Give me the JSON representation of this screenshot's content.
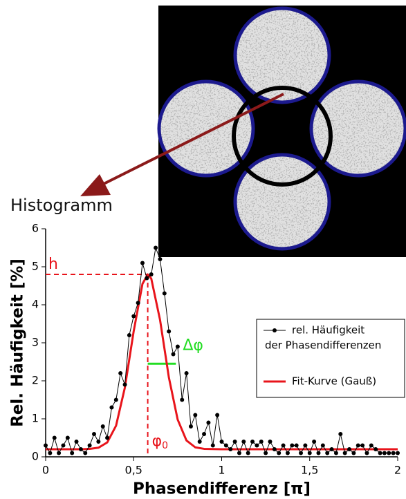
{
  "chart_data": {
    "type": "line",
    "inset_label": "Histogramm",
    "xlabel": "Phasendifferenz [π]",
    "ylabel": "Rel. Häufigkeit [%]",
    "xlim": [
      0,
      2
    ],
    "ylim": [
      0,
      6
    ],
    "xticks": [
      0,
      {
        "value": 0.5,
        "label": "0,5"
      },
      1,
      {
        "value": 1.5,
        "label": "1,5"
      },
      2
    ],
    "yticks": [
      0,
      1,
      2,
      3,
      4,
      5,
      6
    ],
    "series": [
      {
        "name": [
          "rel. Häufigkeit",
          "der Phasendifferenzen"
        ],
        "color": "#000000",
        "markers": true,
        "x": [
          0,
          0.025,
          0.05,
          0.075,
          0.1,
          0.125,
          0.15,
          0.175,
          0.2,
          0.225,
          0.25,
          0.275,
          0.3,
          0.325,
          0.35,
          0.375,
          0.4,
          0.425,
          0.45,
          0.475,
          0.5,
          0.525,
          0.55,
          0.575,
          0.6,
          0.625,
          0.65,
          0.675,
          0.7,
          0.725,
          0.75,
          0.775,
          0.8,
          0.825,
          0.85,
          0.875,
          0.9,
          0.925,
          0.95,
          0.975,
          1,
          1.025,
          1.05,
          1.075,
          1.1,
          1.125,
          1.15,
          1.175,
          1.2,
          1.225,
          1.25,
          1.275,
          1.3,
          1.325,
          1.35,
          1.375,
          1.4,
          1.425,
          1.45,
          1.475,
          1.5,
          1.525,
          1.55,
          1.575,
          1.6,
          1.625,
          1.65,
          1.675,
          1.7,
          1.725,
          1.75,
          1.775,
          1.8,
          1.825,
          1.85,
          1.875,
          1.9,
          1.925,
          1.95,
          1.975,
          2
        ],
        "values": [
          0.3,
          0.1,
          0.5,
          0.1,
          0.3,
          0.5,
          0.1,
          0.4,
          0.2,
          0.1,
          0.3,
          0.6,
          0.4,
          0.8,
          0.5,
          1.3,
          1.5,
          2.2,
          1.9,
          3.2,
          3.7,
          4.05,
          5.1,
          4.7,
          4.8,
          5.5,
          5.2,
          4.3,
          3.3,
          2.7,
          2.9,
          1.5,
          2.2,
          0.8,
          1.1,
          0.4,
          0.6,
          0.9,
          0.3,
          1.1,
          0.4,
          0.3,
          0.2,
          0.4,
          0.1,
          0.4,
          0.1,
          0.4,
          0.3,
          0.4,
          0.1,
          0.4,
          0.2,
          0.1,
          0.3,
          0.1,
          0.3,
          0.3,
          0.1,
          0.3,
          0.1,
          0.4,
          0.1,
          0.3,
          0.1,
          0.2,
          0.1,
          0.6,
          0.1,
          0.2,
          0.1,
          0.3,
          0.3,
          0.1,
          0.3,
          0.2,
          0.1,
          0.1,
          0.1,
          0.1,
          0.1
        ]
      },
      {
        "name": [
          "Fit-Kurve (Gauß)"
        ],
        "color": "#e8141b",
        "markers": false,
        "x": [
          0,
          0.1,
          0.2,
          0.25,
          0.3,
          0.35,
          0.4,
          0.45,
          0.5,
          0.55,
          0.58,
          0.6,
          0.65,
          0.7,
          0.75,
          0.8,
          0.85,
          0.9,
          1,
          1.5,
          2
        ],
        "values": [
          0.2,
          0.2,
          0.2,
          0.21,
          0.24,
          0.38,
          0.82,
          1.82,
          3.3,
          4.55,
          4.8,
          4.69,
          3.6,
          2.09,
          0.98,
          0.43,
          0.25,
          0.21,
          0.2,
          0.2,
          0.2
        ]
      }
    ],
    "annotations": [
      {
        "text": "h",
        "y": 4.8,
        "x": 0.58,
        "color": "#e8141b"
      },
      {
        "text": "φ",
        "sub": "0",
        "x": 0.58,
        "color": "#e8141b"
      },
      {
        "text": "Δφ",
        "y": 2.45,
        "x": [
          0.58,
          0.74
        ],
        "color": "#22dd22"
      }
    ]
  }
}
